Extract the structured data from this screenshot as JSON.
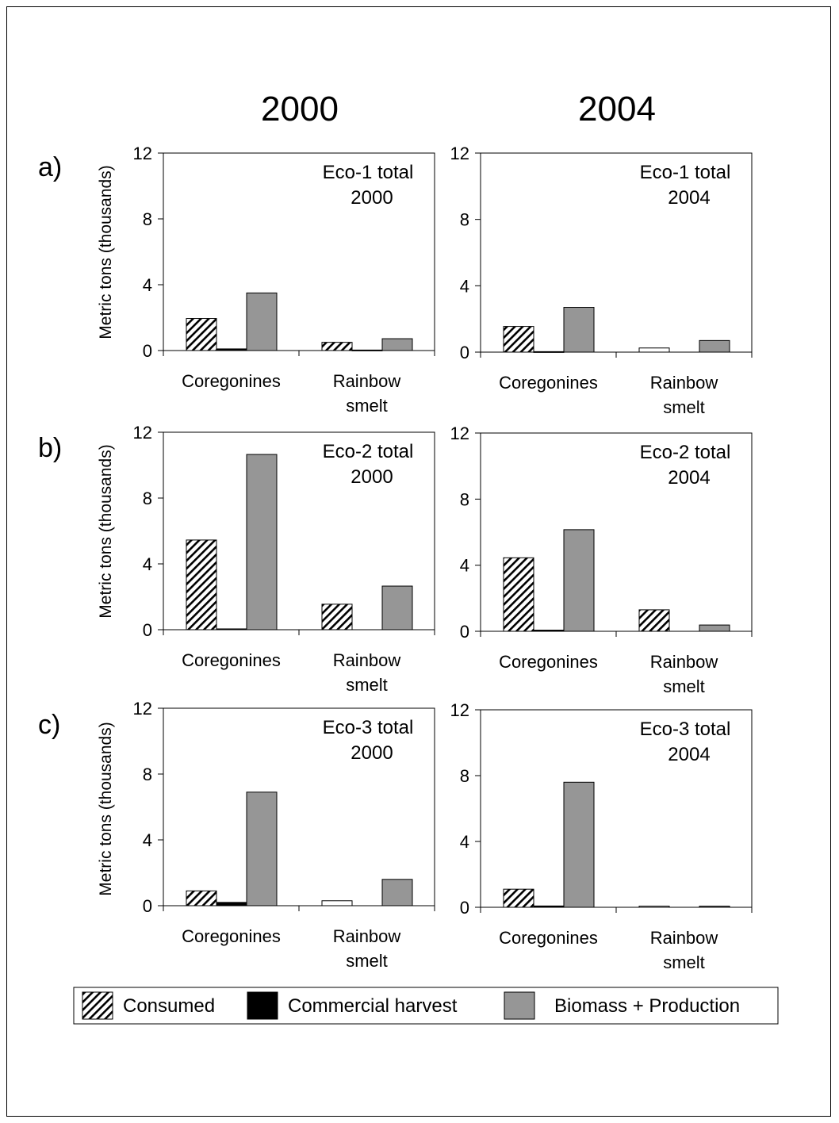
{
  "column_titles": [
    "2000",
    "2004"
  ],
  "row_labels": [
    "a)",
    "b)",
    "c)"
  ],
  "ylabel": "Metric tons (thousands)",
  "categories": [
    "Coregonines",
    "Rainbow\nsmelt"
  ],
  "legend": {
    "items": [
      {
        "name": "Consumed",
        "swatch": "hatch"
      },
      {
        "name": "Commercial harvest",
        "swatch": "#000000"
      },
      {
        "name": "Biomass + Production",
        "swatch": "#969696"
      }
    ]
  },
  "colors": {
    "consumed": "hatch",
    "commercial_harvest": "#000000",
    "biomass_production": "#969696"
  },
  "chart_data": [
    {
      "type": "bar",
      "title": "Eco-1 total\n2000",
      "categories": [
        "Coregonines",
        "Rainbow smelt"
      ],
      "ylim": [
        0,
        12
      ],
      "yticks": [
        0,
        4,
        8,
        12
      ],
      "series": [
        {
          "name": "Consumed",
          "values": [
            1.95,
            0.5
          ]
        },
        {
          "name": "Commercial harvest",
          "values": [
            0.1,
            0.03
          ]
        },
        {
          "name": "Biomass + Production",
          "values": [
            3.5,
            0.72
          ]
        }
      ]
    },
    {
      "type": "bar",
      "title": "Eco-1 total\n2004",
      "categories": [
        "Coregonines",
        "Rainbow smelt"
      ],
      "ylim": [
        0,
        12
      ],
      "yticks": [
        0,
        4,
        8,
        12
      ],
      "series": [
        {
          "name": "Consumed",
          "values": [
            1.55,
            0.25
          ]
        },
        {
          "name": "Commercial harvest",
          "values": [
            0.03,
            0.0
          ]
        },
        {
          "name": "Biomass + Production",
          "values": [
            2.7,
            0.7
          ]
        }
      ]
    },
    {
      "type": "bar",
      "title": "Eco-2 total\n2000",
      "categories": [
        "Coregonines",
        "Rainbow smelt"
      ],
      "ylim": [
        0,
        12
      ],
      "yticks": [
        0,
        4,
        8,
        12
      ],
      "series": [
        {
          "name": "Consumed",
          "values": [
            5.45,
            1.55
          ]
        },
        {
          "name": "Commercial harvest",
          "values": [
            0.05,
            0.0
          ]
        },
        {
          "name": "Biomass + Production",
          "values": [
            10.65,
            2.65
          ]
        }
      ]
    },
    {
      "type": "bar",
      "title": "Eco-2 total\n2004",
      "categories": [
        "Coregonines",
        "Rainbow smelt"
      ],
      "ylim": [
        0,
        12
      ],
      "yticks": [
        0,
        4,
        8,
        12
      ],
      "series": [
        {
          "name": "Consumed",
          "values": [
            4.45,
            1.3
          ]
        },
        {
          "name": "Commercial harvest",
          "values": [
            0.07,
            0.0
          ]
        },
        {
          "name": "Biomass + Production",
          "values": [
            6.15,
            0.38
          ]
        }
      ]
    },
    {
      "type": "bar",
      "title": "Eco-3 total\n2000",
      "categories": [
        "Coregonines",
        "Rainbow smelt"
      ],
      "ylim": [
        0,
        12
      ],
      "yticks": [
        0,
        4,
        8,
        12
      ],
      "series": [
        {
          "name": "Consumed",
          "values": [
            0.9,
            0.3
          ]
        },
        {
          "name": "Commercial harvest",
          "values": [
            0.2,
            0.0
          ]
        },
        {
          "name": "Biomass + Production",
          "values": [
            6.9,
            1.6
          ]
        }
      ]
    },
    {
      "type": "bar",
      "title": "Eco-3 total\n2004",
      "categories": [
        "Coregonines",
        "Rainbow smelt"
      ],
      "ylim": [
        0,
        12
      ],
      "yticks": [
        0,
        4,
        8,
        12
      ],
      "series": [
        {
          "name": "Consumed",
          "values": [
            1.1,
            0.07
          ]
        },
        {
          "name": "Commercial harvest",
          "values": [
            0.08,
            0.0
          ]
        },
        {
          "name": "Biomass + Production",
          "values": [
            7.6,
            0.07
          ]
        }
      ]
    }
  ]
}
